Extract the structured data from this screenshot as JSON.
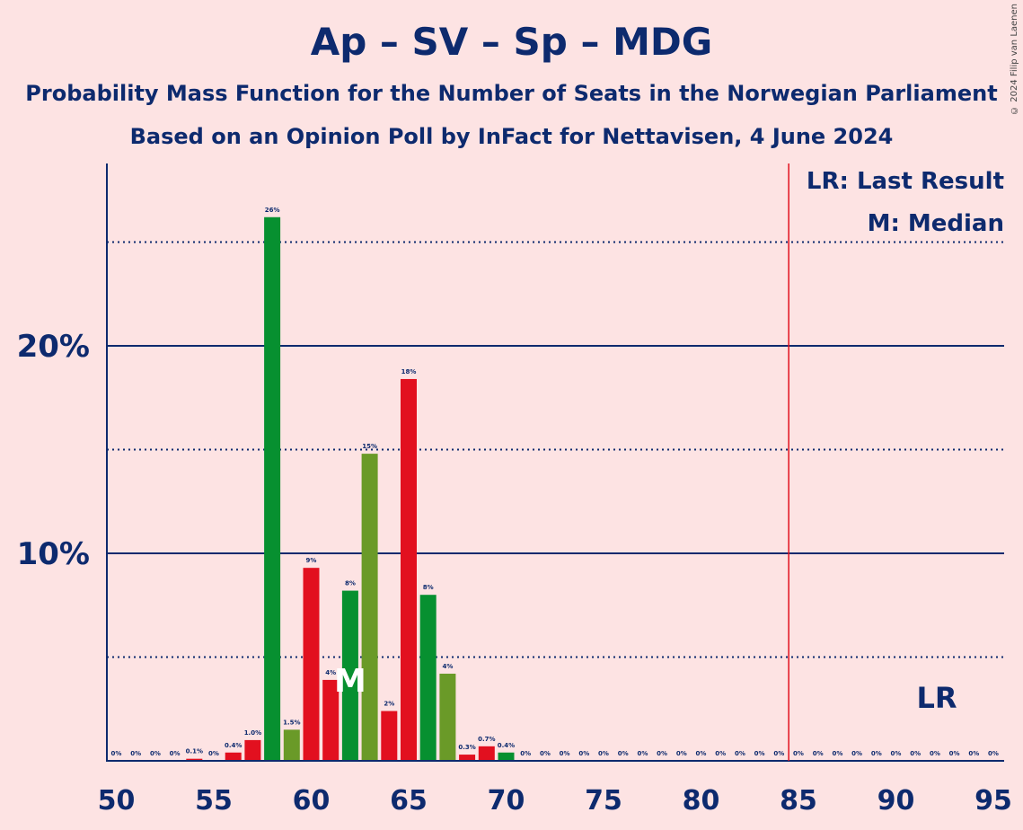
{
  "title": "Ap – SV – Sp – MDG",
  "subtitle1": "Probability Mass Function for the Number of Seats in the Norwegian Parliament",
  "subtitle2": "Based on an Opinion Poll by InFact for Nettavisen, 4 June 2024",
  "copyright": "© 2024 Filip van Laenen",
  "legend": {
    "lr": "LR: Last Result",
    "median": "M: Median"
  },
  "markers": {
    "lr_label": "LR",
    "median_label": "M",
    "last_result_seat": 85,
    "median_seat": 62
  },
  "colors": {
    "red": "#e2101f",
    "green": "#079030",
    "olive": "#6a9a28",
    "axis": "#0d2a6e",
    "lr_line": "#e2101f"
  },
  "chart_data": {
    "type": "bar",
    "xlim": [
      50,
      95
    ],
    "ylim": [
      0,
      28.5
    ],
    "x_ticks": [
      50,
      55,
      60,
      65,
      70,
      75,
      80,
      85,
      90,
      95
    ],
    "y_ticks": [
      {
        "value": 10,
        "label": "10%"
      },
      {
        "value": 20,
        "label": "20%"
      }
    ],
    "dotted_gridlines": [
      5,
      15,
      25
    ],
    "bars": [
      {
        "seat": 50,
        "value": 0,
        "label": "0%",
        "color": "red"
      },
      {
        "seat": 51,
        "value": 0,
        "label": "0%",
        "color": "red"
      },
      {
        "seat": 52,
        "value": 0,
        "label": "0%",
        "color": "red"
      },
      {
        "seat": 53,
        "value": 0,
        "label": "0%",
        "color": "red"
      },
      {
        "seat": 54,
        "value": 0.1,
        "label": "0.1%",
        "color": "red"
      },
      {
        "seat": 55,
        "value": 0,
        "label": "0%",
        "color": "red"
      },
      {
        "seat": 56,
        "value": 0.4,
        "label": "0.4%",
        "color": "red"
      },
      {
        "seat": 57,
        "value": 1.0,
        "label": "1.0%",
        "color": "red"
      },
      {
        "seat": 58,
        "value": 26.2,
        "label": "26%",
        "color": "green"
      },
      {
        "seat": 59,
        "value": 1.5,
        "label": "1.5%",
        "color": "olive"
      },
      {
        "seat": 60,
        "value": 9.3,
        "label": "9%",
        "color": "red"
      },
      {
        "seat": 61,
        "value": 3.9,
        "label": "4%",
        "color": "red"
      },
      {
        "seat": 62,
        "value": 8.2,
        "label": "8%",
        "color": "green"
      },
      {
        "seat": 63,
        "value": 14.8,
        "label": "15%",
        "color": "olive"
      },
      {
        "seat": 64,
        "value": 2.4,
        "label": "2%",
        "color": "red"
      },
      {
        "seat": 65,
        "value": 18.4,
        "label": "18%",
        "color": "red"
      },
      {
        "seat": 66,
        "value": 8.0,
        "label": "8%",
        "color": "green"
      },
      {
        "seat": 67,
        "value": 4.2,
        "label": "4%",
        "color": "olive"
      },
      {
        "seat": 68,
        "value": 0.3,
        "label": "0.3%",
        "color": "red"
      },
      {
        "seat": 69,
        "value": 0.7,
        "label": "0.7%",
        "color": "red"
      },
      {
        "seat": 70,
        "value": 0.4,
        "label": "0.4%",
        "color": "green"
      },
      {
        "seat": 71,
        "value": 0,
        "label": "0%",
        "color": "red"
      },
      {
        "seat": 72,
        "value": 0,
        "label": "0%",
        "color": "red"
      },
      {
        "seat": 73,
        "value": 0,
        "label": "0%",
        "color": "red"
      },
      {
        "seat": 74,
        "value": 0,
        "label": "0%",
        "color": "red"
      },
      {
        "seat": 75,
        "value": 0,
        "label": "0%",
        "color": "red"
      },
      {
        "seat": 76,
        "value": 0,
        "label": "0%",
        "color": "red"
      },
      {
        "seat": 77,
        "value": 0,
        "label": "0%",
        "color": "red"
      },
      {
        "seat": 78,
        "value": 0,
        "label": "0%",
        "color": "red"
      },
      {
        "seat": 79,
        "value": 0,
        "label": "0%",
        "color": "red"
      },
      {
        "seat": 80,
        "value": 0,
        "label": "0%",
        "color": "red"
      },
      {
        "seat": 81,
        "value": 0,
        "label": "0%",
        "color": "red"
      },
      {
        "seat": 82,
        "value": 0,
        "label": "0%",
        "color": "red"
      },
      {
        "seat": 83,
        "value": 0,
        "label": "0%",
        "color": "red"
      },
      {
        "seat": 84,
        "value": 0,
        "label": "0%",
        "color": "red"
      },
      {
        "seat": 85,
        "value": 0,
        "label": "0%",
        "color": "red"
      },
      {
        "seat": 86,
        "value": 0,
        "label": "0%",
        "color": "red"
      },
      {
        "seat": 87,
        "value": 0,
        "label": "0%",
        "color": "red"
      },
      {
        "seat": 88,
        "value": 0,
        "label": "0%",
        "color": "red"
      },
      {
        "seat": 89,
        "value": 0,
        "label": "0%",
        "color": "red"
      },
      {
        "seat": 90,
        "value": 0,
        "label": "0%",
        "color": "red"
      },
      {
        "seat": 91,
        "value": 0,
        "label": "0%",
        "color": "red"
      },
      {
        "seat": 92,
        "value": 0,
        "label": "0%",
        "color": "red"
      },
      {
        "seat": 93,
        "value": 0,
        "label": "0%",
        "color": "red"
      },
      {
        "seat": 94,
        "value": 0,
        "label": "0%",
        "color": "red"
      },
      {
        "seat": 95,
        "value": 0,
        "label": "0%",
        "color": "red"
      }
    ]
  }
}
